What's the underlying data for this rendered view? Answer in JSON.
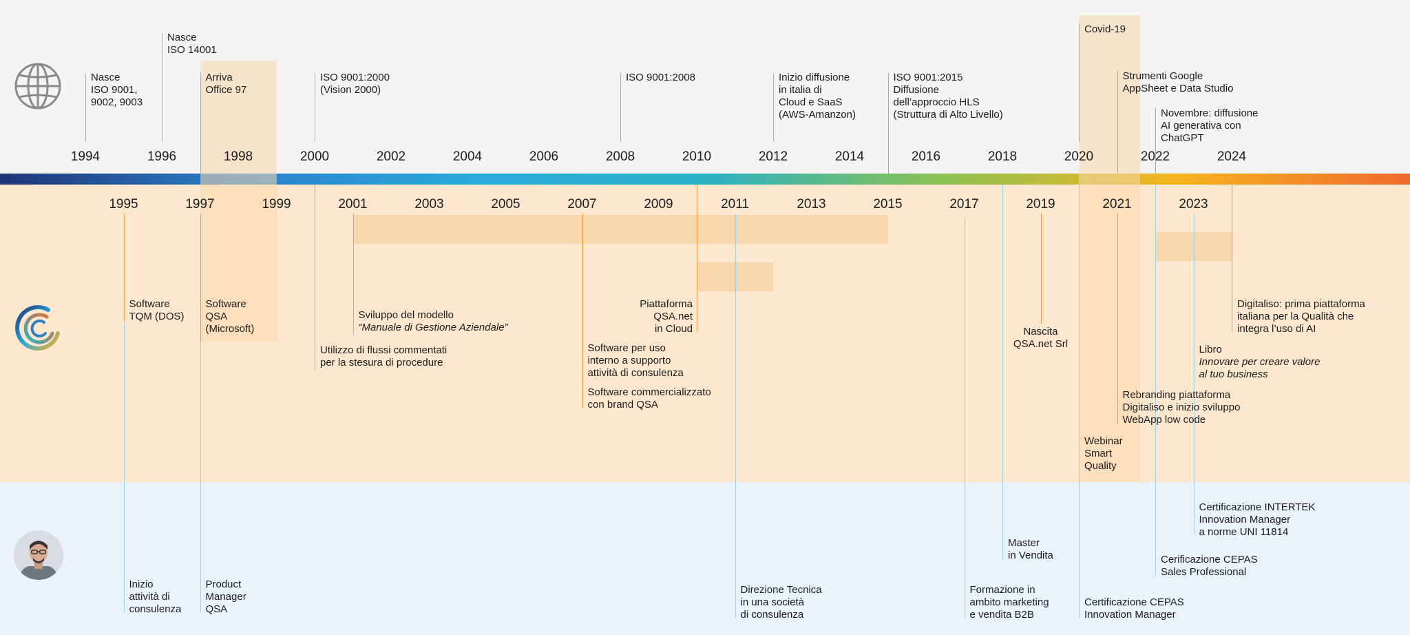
{
  "colors": {
    "world_band": "#f4f4f4",
    "company_band": "#fde7cf",
    "person_band": "#eaf3fc",
    "highlight": "#f9d7ad",
    "orange_line": "#f29a3c",
    "gray_line": "#a8a8a8",
    "blue_line": "#9fcfe6",
    "gradient": [
      "#1f3575",
      "#2b7fc8",
      "#29a9dc",
      "#2ab1c4",
      "#8cc152",
      "#f5b51e",
      "#ef6a2e"
    ]
  },
  "icons": {
    "world": "globe-icon",
    "company": "qsa-logo-icon",
    "person": "person-avatar-icon"
  },
  "years_top": [
    "1994",
    "1996",
    "1998",
    "2000",
    "2002",
    "2004",
    "2006",
    "2008",
    "2010",
    "2012",
    "2014",
    "2016",
    "2018",
    "2020",
    "2022",
    "2024"
  ],
  "years_bottom": [
    "1995",
    "1997",
    "1999",
    "2001",
    "2003",
    "2005",
    "2007",
    "2009",
    "2011",
    "2013",
    "2015",
    "2017",
    "2019",
    "2021",
    "2023"
  ],
  "world_events": [
    {
      "year": 1994,
      "lines": [
        "Nasce",
        "ISO 9001,",
        "9002, 9003"
      ]
    },
    {
      "year": 1996,
      "lines": [
        "Nasce",
        "ISO 14001"
      ]
    },
    {
      "year": 1997,
      "lines": [
        "Arriva",
        "Office 97"
      ]
    },
    {
      "year": 2000,
      "lines": [
        "ISO 9001:2000",
        "(Vision 2000)"
      ]
    },
    {
      "year": 2008,
      "lines": [
        "ISO 9001:2008"
      ]
    },
    {
      "year": 2012,
      "lines": [
        "Inizio diffusione",
        "in italia di",
        "Cloud e SaaS",
        "(AWS-Amanzon)"
      ]
    },
    {
      "year": 2015,
      "lines": [
        "ISO 9001:2015",
        "Diffusione",
        "dell’approccio HLS",
        "(Struttura di Alto Livello)"
      ]
    },
    {
      "year": 2020,
      "lines": [
        "Covid-19"
      ]
    },
    {
      "year": 2021,
      "lines": [
        "Strumenti Google",
        "AppSheet e Data Studio"
      ]
    },
    {
      "year": 2022,
      "lines": [
        "Novembre: diffusione",
        "AI generativa con",
        "ChatGPT"
      ]
    }
  ],
  "company_events": [
    {
      "year": 1995,
      "lines": [
        "Software",
        "TQM (DOS)"
      ]
    },
    {
      "year": 1997,
      "lines": [
        "Software",
        "QSA",
        "(Microsoft)"
      ]
    },
    {
      "year": 2001,
      "lines": [
        "Sviluppo del modello"
      ],
      "italic": [
        "“Manuale di Gestione Aziendale”"
      ]
    },
    {
      "year": 2000,
      "lines": [
        "Utilizzo di flussi commentati",
        "per la stesura di procedure"
      ]
    },
    {
      "year": 2010,
      "lines": [
        "Piattaforma",
        "QSA.net",
        "in Cloud"
      ]
    },
    {
      "year": 2007,
      "lines": [
        "Software per uso",
        "interno a supporto",
        "attività di consulenza"
      ]
    },
    {
      "year": 2007,
      "lines": [
        "Software commercializzato",
        "con brand QSA"
      ]
    },
    {
      "year": 2019,
      "lines": [
        "Nascita",
        "QSA.net Srl"
      ]
    },
    {
      "year": 2024,
      "lines": [
        "Digitaliso: prima piattaforma",
        "italiana per la Qualità che",
        "integra l’uso di AI"
      ]
    },
    {
      "year": 2023,
      "lines": [
        "Libro"
      ],
      "italic": [
        "Innovare per creare valore",
        "al tuo business"
      ]
    },
    {
      "year": 2021,
      "lines": [
        "Rebranding piattaforma",
        "Digitaliso e inizio sviluppo",
        "WebApp low code"
      ]
    },
    {
      "year": 2020,
      "lines": [
        "Webinar",
        "Smart",
        "Quality"
      ]
    }
  ],
  "person_events": [
    {
      "year": 1995,
      "lines": [
        "Inizio",
        "attività di",
        "consulenza"
      ]
    },
    {
      "year": 1997,
      "lines": [
        "Product",
        "Manager",
        "QSA"
      ]
    },
    {
      "year": 2011,
      "lines": [
        "Direzione Tecnica",
        "in una società",
        "di consulenza"
      ]
    },
    {
      "year": 2017,
      "lines": [
        "Formazione in",
        "ambito marketing",
        "e vendita B2B"
      ]
    },
    {
      "year": 2018,
      "lines": [
        "Master",
        "in Vendita"
      ]
    },
    {
      "year": 2020,
      "lines": [
        "Certificazione CEPAS",
        "Innovation Manager"
      ]
    },
    {
      "year": 2022,
      "lines": [
        "Cerificazione CEPAS",
        "Sales Professional"
      ]
    },
    {
      "year": 2023,
      "lines": [
        "Certificazione INTERTEK",
        "Innovation Manager",
        "a norme UNI 11814"
      ]
    }
  ]
}
